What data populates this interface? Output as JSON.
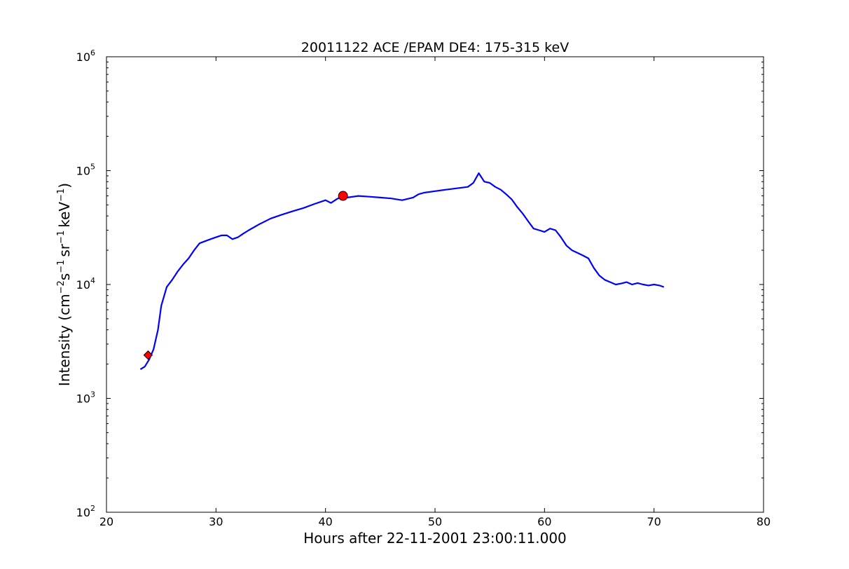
{
  "chart_data": {
    "type": "line",
    "title": "20011122 ACE /EPAM DE4: 175-315 keV",
    "xlabel": "Hours after 22-11-2001 23:00:11.000",
    "ylabel": {
      "prefix": "Intensity (cm",
      "exp1": "−2",
      "s": "s",
      "exp2": "−1",
      "sr": "sr",
      "exp3": "−1",
      "kev": "keV",
      "exp4": "−1",
      "suffix": ")"
    },
    "xlim": [
      20,
      80
    ],
    "ylim": [
      100,
      1000000
    ],
    "yscale": "log",
    "grid": false,
    "x_ticks": [
      "20",
      "30",
      "40",
      "50",
      "60",
      "70",
      "80"
    ],
    "y_ticks": [
      {
        "base": "10",
        "exp": "2",
        "value": 100
      },
      {
        "base": "10",
        "exp": "3",
        "value": 1000
      },
      {
        "base": "10",
        "exp": "4",
        "value": 10000
      },
      {
        "base": "10",
        "exp": "5",
        "value": 100000
      },
      {
        "base": "10",
        "exp": "6",
        "value": 1000000
      }
    ],
    "series": [
      {
        "color": "#000000",
        "style": "raw",
        "points": [
          [
            23.1,
            1800
          ],
          [
            23.5,
            1900
          ],
          [
            23.9,
            2200
          ],
          [
            24.3,
            2700
          ],
          [
            24.7,
            4000
          ],
          [
            25.0,
            6500
          ],
          [
            25.5,
            9500
          ],
          [
            26.0,
            11000
          ],
          [
            26.5,
            13000
          ],
          [
            27.0,
            15000
          ],
          [
            27.5,
            17000
          ],
          [
            28.0,
            20000
          ],
          [
            28.5,
            23000
          ],
          [
            29.0,
            24000
          ],
          [
            29.5,
            25000
          ],
          [
            30.0,
            26000
          ],
          [
            30.5,
            27000
          ],
          [
            31.0,
            27000
          ],
          [
            31.5,
            25000
          ],
          [
            32.0,
            26000
          ],
          [
            32.5,
            28000
          ],
          [
            33.0,
            30000
          ],
          [
            34.0,
            34000
          ],
          [
            35.0,
            38000
          ],
          [
            36.0,
            41000
          ],
          [
            37.0,
            44000
          ],
          [
            38.0,
            47000
          ],
          [
            39.0,
            51000
          ],
          [
            40.0,
            55000
          ],
          [
            40.5,
            52000
          ],
          [
            41.0,
            56000
          ],
          [
            41.6,
            60000
          ],
          [
            42.0,
            58000
          ],
          [
            43.0,
            60000
          ],
          [
            44.0,
            59000
          ],
          [
            45.0,
            58000
          ],
          [
            46.0,
            57000
          ],
          [
            47.0,
            55000
          ],
          [
            48.0,
            58000
          ],
          [
            48.5,
            62000
          ],
          [
            49.0,
            64000
          ],
          [
            50.0,
            66000
          ],
          [
            51.0,
            68000
          ],
          [
            52.0,
            70000
          ],
          [
            53.0,
            72000
          ],
          [
            53.5,
            78000
          ],
          [
            54.0,
            95000
          ],
          [
            54.5,
            80000
          ],
          [
            55.0,
            78000
          ],
          [
            55.5,
            72000
          ],
          [
            56.0,
            68000
          ],
          [
            56.5,
            62000
          ],
          [
            57.0,
            56000
          ],
          [
            57.5,
            48000
          ],
          [
            58.0,
            42000
          ],
          [
            58.5,
            36000
          ],
          [
            59.0,
            31000
          ],
          [
            59.5,
            30000
          ],
          [
            60.0,
            29000
          ],
          [
            60.5,
            31000
          ],
          [
            61.0,
            30000
          ],
          [
            61.5,
            26000
          ],
          [
            62.0,
            22000
          ],
          [
            62.5,
            20000
          ],
          [
            63.0,
            19000
          ],
          [
            63.5,
            18000
          ],
          [
            64.0,
            17000
          ],
          [
            64.5,
            14000
          ],
          [
            65.0,
            12000
          ],
          [
            65.5,
            11000
          ],
          [
            66.0,
            10500
          ],
          [
            66.5,
            10000
          ],
          [
            67.0,
            10200
          ],
          [
            67.5,
            10500
          ],
          [
            68.0,
            10000
          ],
          [
            68.5,
            10300
          ],
          [
            69.0,
            10000
          ],
          [
            69.5,
            9800
          ],
          [
            70.0,
            10000
          ],
          [
            70.5,
            9800
          ],
          [
            70.9,
            9500
          ]
        ]
      },
      {
        "color": "#0000ff",
        "style": "smoothed",
        "points": [
          [
            23.1,
            1800
          ],
          [
            23.5,
            1900
          ],
          [
            23.9,
            2200
          ],
          [
            24.3,
            2700
          ],
          [
            24.7,
            4000
          ],
          [
            25.0,
            6500
          ],
          [
            25.5,
            9500
          ],
          [
            26.0,
            11000
          ],
          [
            26.5,
            13000
          ],
          [
            27.0,
            15000
          ],
          [
            27.5,
            17000
          ],
          [
            28.0,
            20000
          ],
          [
            28.5,
            23000
          ],
          [
            29.0,
            24000
          ],
          [
            29.5,
            25000
          ],
          [
            30.0,
            26000
          ],
          [
            30.5,
            27000
          ],
          [
            31.0,
            27000
          ],
          [
            31.5,
            25000
          ],
          [
            32.0,
            26000
          ],
          [
            32.5,
            28000
          ],
          [
            33.0,
            30000
          ],
          [
            34.0,
            34000
          ],
          [
            35.0,
            38000
          ],
          [
            36.0,
            41000
          ],
          [
            37.0,
            44000
          ],
          [
            38.0,
            47000
          ],
          [
            39.0,
            51000
          ],
          [
            40.0,
            55000
          ],
          [
            40.5,
            52000
          ],
          [
            41.0,
            56000
          ],
          [
            41.6,
            60000
          ],
          [
            42.0,
            58000
          ],
          [
            43.0,
            60000
          ],
          [
            44.0,
            59000
          ],
          [
            45.0,
            58000
          ],
          [
            46.0,
            57000
          ],
          [
            47.0,
            55000
          ],
          [
            48.0,
            58000
          ],
          [
            48.5,
            62000
          ],
          [
            49.0,
            64000
          ],
          [
            50.0,
            66000
          ],
          [
            51.0,
            68000
          ],
          [
            52.0,
            70000
          ],
          [
            53.0,
            72000
          ],
          [
            53.5,
            78000
          ],
          [
            54.0,
            95000
          ],
          [
            54.5,
            80000
          ],
          [
            55.0,
            78000
          ],
          [
            55.5,
            72000
          ],
          [
            56.0,
            68000
          ],
          [
            56.5,
            62000
          ],
          [
            57.0,
            56000
          ],
          [
            57.5,
            48000
          ],
          [
            58.0,
            42000
          ],
          [
            58.5,
            36000
          ],
          [
            59.0,
            31000
          ],
          [
            59.5,
            30000
          ],
          [
            60.0,
            29000
          ],
          [
            60.5,
            31000
          ],
          [
            61.0,
            30000
          ],
          [
            61.5,
            26000
          ],
          [
            62.0,
            22000
          ],
          [
            62.5,
            20000
          ],
          [
            63.0,
            19000
          ],
          [
            63.5,
            18000
          ],
          [
            64.0,
            17000
          ],
          [
            64.5,
            14000
          ],
          [
            65.0,
            12000
          ],
          [
            65.5,
            11000
          ],
          [
            66.0,
            10500
          ],
          [
            66.5,
            10000
          ],
          [
            67.0,
            10200
          ],
          [
            67.5,
            10500
          ],
          [
            68.0,
            10000
          ],
          [
            68.5,
            10300
          ],
          [
            69.0,
            10000
          ],
          [
            69.5,
            9800
          ],
          [
            70.0,
            10000
          ],
          [
            70.5,
            9800
          ],
          [
            70.9,
            9500
          ]
        ]
      }
    ],
    "markers": [
      {
        "x": 23.8,
        "y": 2400,
        "color": "#ff0000",
        "shape": "diamond"
      },
      {
        "x": 41.6,
        "y": 60000,
        "color": "#ff0000",
        "shape": "circle"
      }
    ]
  }
}
